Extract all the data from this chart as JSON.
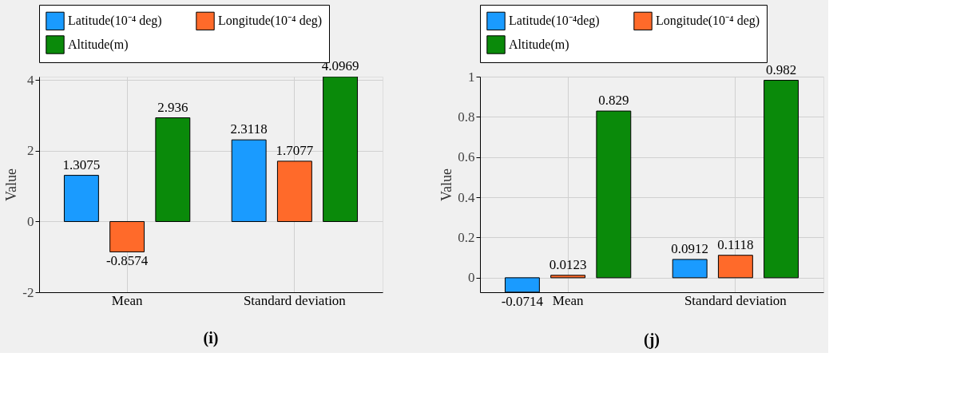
{
  "chart_data": [
    {
      "type": "bar",
      "ylabel": "Value",
      "categories": [
        "Mean",
        "Standard deviation"
      ],
      "ylim": [
        -2,
        4.1
      ],
      "yticks": [
        -2,
        0,
        2,
        4
      ],
      "grid": true,
      "legend": "top",
      "data_labels": true,
      "annotations": [
        "(i)"
      ],
      "series": [
        {
          "name": "Latitude(10⁻⁴ deg)",
          "color": "#1a9bff",
          "values": [
            1.3075,
            2.3118
          ]
        },
        {
          "name": "Longitude(10⁻⁴ deg)",
          "color": "#ff6a2a",
          "values": [
            -0.8574,
            1.7077
          ]
        },
        {
          "name": "Altitude(m)",
          "color": "#0a8a0a",
          "values": [
            2.936,
            4.0969
          ]
        }
      ]
    },
    {
      "type": "bar",
      "ylabel": "Value",
      "categories": [
        "Mean",
        "Standard deviation"
      ],
      "ylim": [
        -0.072,
        1
      ],
      "yticks": [
        0,
        0.2,
        0.4,
        0.6,
        0.8,
        1
      ],
      "grid": true,
      "legend": "top",
      "data_labels": true,
      "annotations": [
        "(j)"
      ],
      "series": [
        {
          "name": "Latitude(10⁻⁴deg)",
          "color": "#1a9bff",
          "values": [
            -0.0714,
            0.0912
          ]
        },
        {
          "name": "Longitude(10⁻⁴ deg)",
          "color": "#ff6a2a",
          "values": [
            0.0123,
            0.1118
          ]
        },
        {
          "name": "Altitude(m)",
          "color": "#0a8a0a",
          "values": [
            0.829,
            0.982
          ]
        }
      ]
    }
  ]
}
